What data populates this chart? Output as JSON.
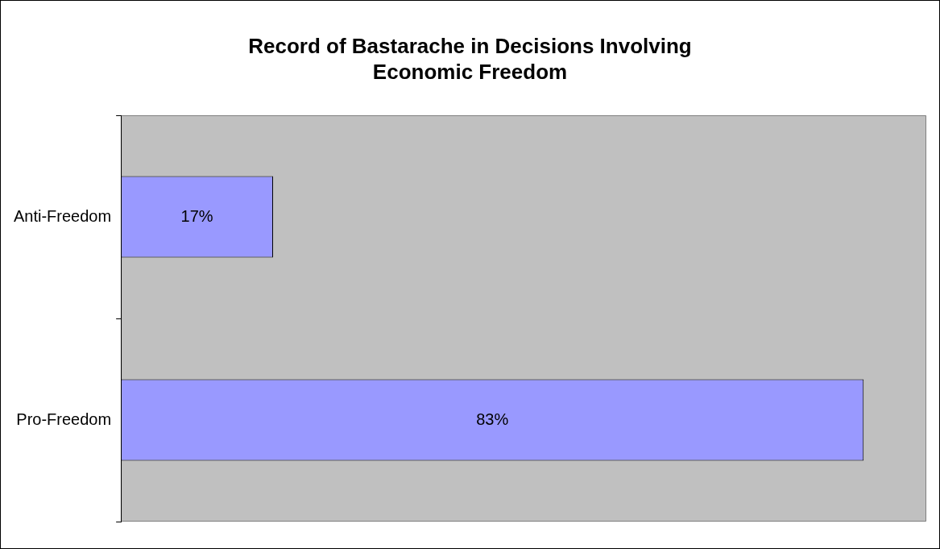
{
  "chart_data": {
    "type": "bar",
    "orientation": "horizontal",
    "title": "Record of Bastarache in Decisions Involving Economic Freedom",
    "categories": [
      "Anti-Freedom",
      "Pro-Freedom"
    ],
    "values": [
      17,
      83
    ],
    "value_labels": [
      "17%",
      "83%"
    ],
    "color": "#9999ff",
    "xlim": [
      0,
      90
    ],
    "grid": false,
    "legend": false,
    "tick_labels": "y"
  }
}
